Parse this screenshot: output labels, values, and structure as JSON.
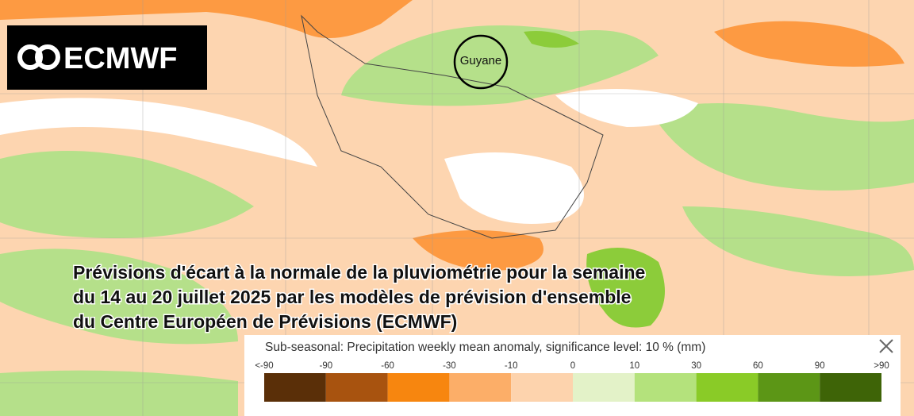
{
  "logo": {
    "text": "ECMWF"
  },
  "map": {
    "marker_label": "Guyane"
  },
  "caption": {
    "lines": [
      "Prévisions d'écart à la normale de la pluviométrie pour la semaine",
      "du 14 au 20 juillet 2025 par les modèles de prévision d'ensemble",
      "du Centre Européen de Prévisions (ECMWF)"
    ]
  },
  "legend": {
    "title": "Sub-seasonal: Precipitation weekly mean anomaly, significance level: 10 % (mm)",
    "labels": [
      "<-90",
      "-90",
      "-60",
      "-30",
      "-10",
      "0",
      "10",
      "30",
      "60",
      "90",
      ">90"
    ],
    "colors": [
      "#5a2f08",
      "#a8530f",
      "#f7860f",
      "#fcae68",
      "#fdd3ad",
      "#e3f2c8",
      "#b4e27c",
      "#8acb27",
      "#5c9616",
      "#3e6407"
    ]
  }
}
